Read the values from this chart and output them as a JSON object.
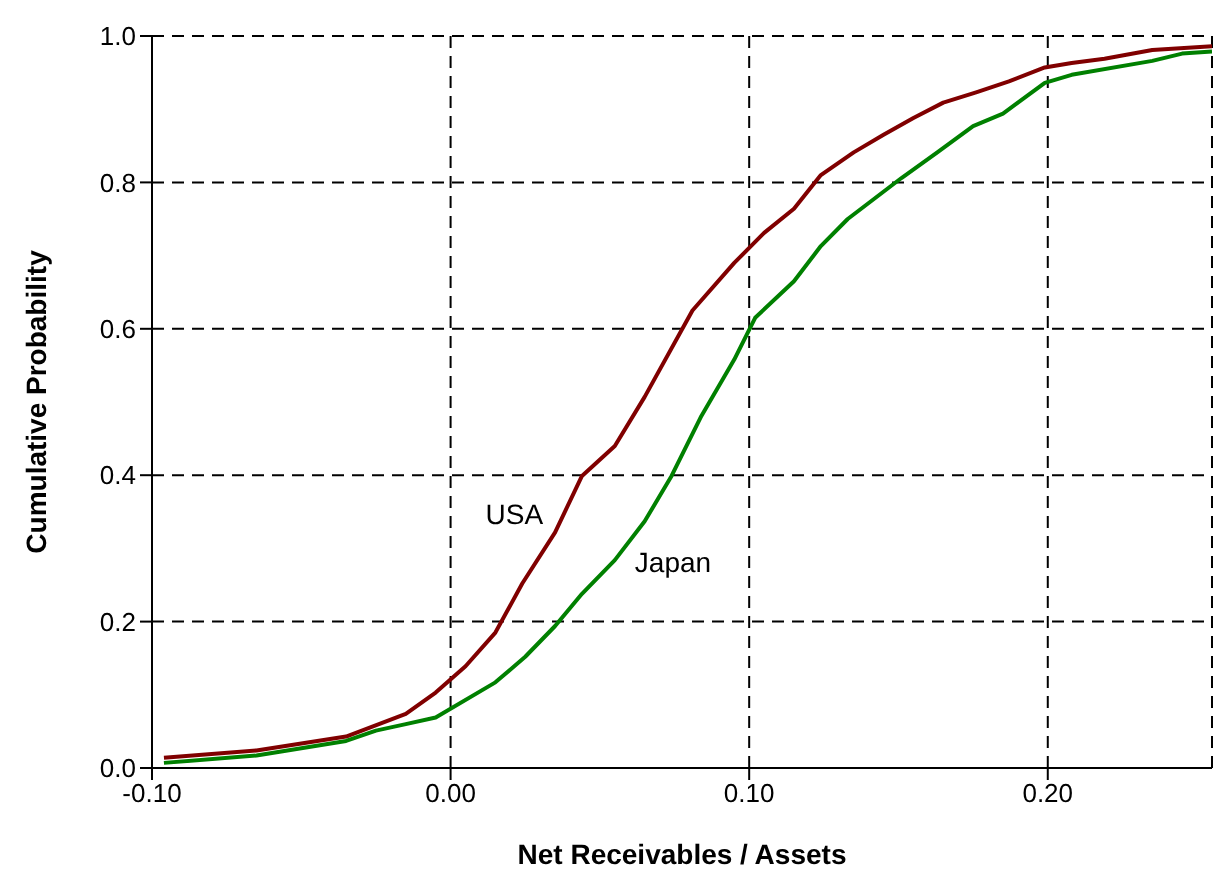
{
  "chart_data": {
    "type": "line",
    "xlabel": "Net Receivables / Assets",
    "ylabel": "Cumulative Probability",
    "xlim": [
      -0.1,
      0.255
    ],
    "xticks": [
      {
        "value": -0.1,
        "label": "-0.10"
      },
      {
        "value": 0,
        "label": "0.00"
      },
      {
        "value": 0.1,
        "label": "0.10"
      },
      {
        "value": 0.2,
        "label": "0.20"
      }
    ],
    "ylim": [
      0,
      1
    ],
    "yticks": [
      {
        "value": 0,
        "label": "0.0"
      },
      {
        "value": 0.2,
        "label": "0.2"
      },
      {
        "value": 0.4,
        "label": "0.4"
      },
      {
        "value": 0.6,
        "label": "0.6"
      },
      {
        "value": 0.8,
        "label": "0.8"
      },
      {
        "value": 1,
        "label": "1.0"
      }
    ],
    "grid": true,
    "line_style": "solid",
    "marker": "none",
    "series": [
      {
        "name": "USA",
        "color": "#800000",
        "x": [
          -0.096,
          -0.065,
          -0.035,
          -0.015,
          -0.005,
          0.005,
          0.015,
          0.024,
          0.035,
          0.044,
          0.055,
          0.065,
          0.081,
          0.095,
          0.105,
          0.115,
          0.124,
          0.135,
          0.145,
          0.155,
          0.165,
          0.176,
          0.187,
          0.199,
          0.208,
          0.219,
          0.235,
          0.255
        ],
        "values": [
          0.014,
          0.024,
          0.043,
          0.074,
          0.103,
          0.139,
          0.185,
          0.252,
          0.322,
          0.399,
          0.44,
          0.507,
          0.625,
          0.69,
          0.731,
          0.764,
          0.81,
          0.841,
          0.865,
          0.888,
          0.909,
          0.923,
          0.938,
          0.957,
          0.963,
          0.969,
          0.981,
          0.986
        ]
      },
      {
        "name": "Japan",
        "color": "#008000",
        "x": [
          -0.096,
          -0.065,
          -0.035,
          -0.025,
          -0.015,
          -0.005,
          0.015,
          0.025,
          0.035,
          0.044,
          0.055,
          0.065,
          0.074,
          0.084,
          0.095,
          0.102,
          0.115,
          0.124,
          0.133,
          0.151,
          0.163,
          0.175,
          0.185,
          0.199,
          0.208,
          0.235,
          0.245,
          0.255
        ],
        "values": [
          0.007,
          0.017,
          0.037,
          0.051,
          0.06,
          0.069,
          0.117,
          0.152,
          0.194,
          0.238,
          0.284,
          0.337,
          0.399,
          0.481,
          0.558,
          0.615,
          0.665,
          0.713,
          0.75,
          0.806,
          0.841,
          0.877,
          0.894,
          0.936,
          0.947,
          0.966,
          0.976,
          0.979
        ]
      }
    ]
  }
}
